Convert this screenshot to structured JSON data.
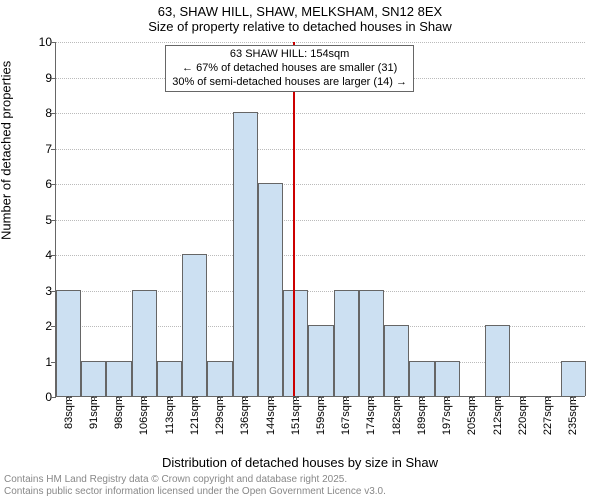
{
  "title_line1": "63, SHAW HILL, SHAW, MELKSHAM, SN12 8EX",
  "title_line2": "Size of property relative to detached houses in Shaw",
  "ylabel": "Number of detached properties",
  "xlabel": "Distribution of detached houses by size in Shaw",
  "footer_line1": "Contains HM Land Registry data © Crown copyright and database right 2025.",
  "footer_line2": "Contains public sector information licensed under the Open Government Licence v3.0.",
  "chart": {
    "type": "histogram",
    "ylim": [
      0,
      10
    ],
    "ytick_step": 1,
    "categories": [
      "83sqm",
      "91sqm",
      "98sqm",
      "106sqm",
      "113sqm",
      "121sqm",
      "129sqm",
      "136sqm",
      "144sqm",
      "151sqm",
      "159sqm",
      "167sqm",
      "174sqm",
      "182sqm",
      "189sqm",
      "197sqm",
      "205sqm",
      "212sqm",
      "220sqm",
      "227sqm",
      "235sqm"
    ],
    "values": [
      3,
      1,
      1,
      3,
      1,
      4,
      1,
      8,
      6,
      3,
      2,
      3,
      3,
      2,
      1,
      1,
      0,
      2,
      0,
      0,
      1
    ],
    "bar_fill": "#cce0f2",
    "bar_stroke": "#666666",
    "grid_color": "#bbbbbb",
    "axis_color": "#666666",
    "tick_font_size": 12,
    "reference_x_index": 9.4,
    "reference_color": "#cc0000",
    "annotation": {
      "line1": "63 SHAW HILL: 154sqm",
      "line2": "← 67% of detached houses are smaller (31)",
      "line3": "30% of semi-detached houses are larger (14) →"
    }
  }
}
